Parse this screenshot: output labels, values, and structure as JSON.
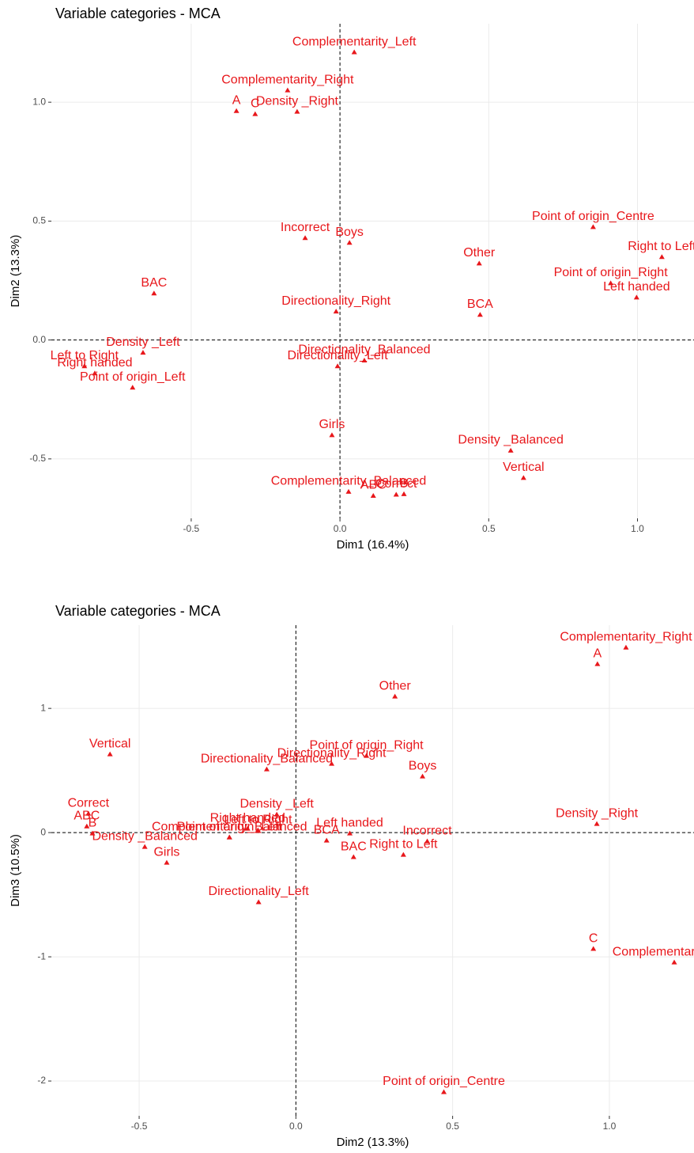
{
  "chart_data": [
    {
      "type": "scatter",
      "title": "Variable categories - MCA",
      "x_label": "Dim1 (16.4%)",
      "y_label": "Dim2 (13.3%)",
      "color": "#e8171b",
      "grid": true,
      "hline": 0,
      "vline": 0,
      "xlim": [
        -0.97,
        1.19
      ],
      "ylim": [
        -0.75,
        1.33
      ],
      "xticks": [
        -0.5,
        {
          "value": 0,
          "label": "0.0"
        },
        0.5,
        {
          "value": 1,
          "label": "1.0"
        }
      ],
      "yticks": [
        -0.5,
        {
          "value": 0,
          "label": "0.0"
        },
        0.5,
        {
          "value": 1,
          "label": "1.0"
        }
      ],
      "labels": [
        "Complementarity_Left",
        "Complementarity_Right",
        "A",
        "C",
        "Density _Right",
        "Point of origin_Centre",
        "Right to Left",
        "Incorrect",
        "Boys",
        "Other",
        "Point of origin_Right",
        "Left handed",
        "BAC",
        "Directionality_Right",
        "BCA",
        "Density _Left",
        "Left to Right",
        "Right handed",
        "Point of origin_Left",
        "Directionality_Balanced",
        "Directionality_Left",
        "Girls",
        "Density _Balanced",
        "Vertical",
        "Complementarity_Balanced",
        "Correct",
        "ABC",
        "B"
      ],
      "x": [
        0.048,
        -0.176,
        -0.348,
        -0.285,
        -0.144,
        0.851,
        1.082,
        -0.117,
        0.032,
        0.468,
        0.91,
        0.997,
        -0.625,
        -0.013,
        0.471,
        -0.662,
        -0.859,
        -0.824,
        -0.697,
        0.082,
        -0.008,
        -0.027,
        0.574,
        0.617,
        0.029,
        0.189,
        0.112,
        0.215
      ],
      "values": [
        1.21,
        1.05,
        0.963,
        0.95,
        0.96,
        0.475,
        0.349,
        0.429,
        0.409,
        0.322,
        0.239,
        0.179,
        0.196,
        0.12,
        0.106,
        -0.053,
        -0.11,
        -0.14,
        -0.2,
        -0.086,
        -0.11,
        -0.4,
        -0.465,
        -0.58,
        -0.638,
        -0.65,
        -0.655,
        -0.648
      ]
    },
    {
      "type": "scatter",
      "title": "Variable categories - MCA",
      "x_label": "Dim2 (13.3%)",
      "y_label": "Dim3 (10.5%)",
      "color": "#e8171b",
      "grid": true,
      "hline": 0,
      "vline": 0,
      "xlim": [
        -0.78,
        1.27
      ],
      "ylim": [
        -2.28,
        1.67
      ],
      "xticks": [
        -0.5,
        {
          "value": 0,
          "label": "0.0"
        },
        0.5,
        {
          "value": 1,
          "label": "1.0"
        }
      ],
      "yticks": [
        -2,
        -1,
        0,
        1
      ],
      "labels": [
        "Complementarity_Right",
        "A",
        "Other",
        "Vertical",
        "Point of origin_Right",
        "Directionality_Right",
        "Boys",
        "Directionality_Balanced",
        "Density _Left",
        "Correct",
        "ABC",
        "B",
        "Density _Right",
        "Right handed",
        "Left to Right",
        "Left handed",
        "Complementarity_Balanced",
        "Incorrect",
        "BCA",
        "BAC",
        "Right to Left",
        "Density _Balanced",
        "Point of origin_Left",
        "Girls",
        "Directionality_Left",
        "C",
        "Complementarity_Left",
        "Point of origin_Centre"
      ],
      "x": [
        1.053,
        0.962,
        0.316,
        -0.593,
        0.225,
        0.114,
        0.404,
        -0.093,
        -0.061,
        -0.662,
        -0.667,
        -0.649,
        0.96,
        -0.154,
        -0.121,
        0.172,
        -0.212,
        0.419,
        0.098,
        0.184,
        0.343,
        -0.482,
        -0.212,
        -0.412,
        -0.119,
        0.949,
        1.207,
        0.472
      ],
      "values": [
        1.49,
        1.357,
        1.096,
        0.631,
        0.618,
        0.554,
        0.452,
        0.51,
        0.146,
        0.153,
        0.05,
        -0.006,
        0.07,
        0.032,
        0.019,
        -0.006,
        -0.038,
        -0.07,
        -0.064,
        -0.197,
        -0.178,
        -0.115,
        -0.038,
        -0.242,
        -0.56,
        -0.936,
        -1.045,
        -2.089
      ]
    }
  ]
}
